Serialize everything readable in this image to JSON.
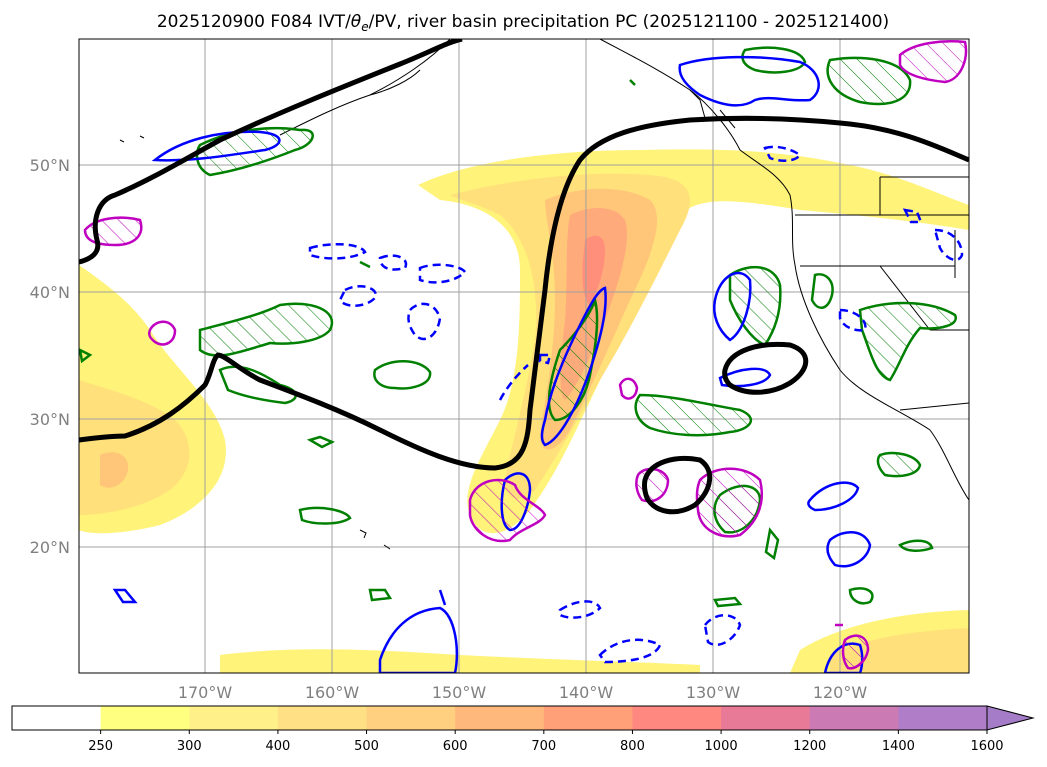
{
  "title": {
    "prefix": "2025120900 F084 IVT/",
    "theta": "θ",
    "sub": "e",
    "suffix": "/PV, river basin precipitation PC (2025121100 - 2025121400)"
  },
  "map": {
    "lat_labels": [
      "50°N",
      "40°N",
      "30°N",
      "20°N"
    ],
    "lon_labels": [
      "170°W",
      "160°W",
      "150°W",
      "140°W",
      "130°W",
      "120°W"
    ]
  },
  "colorbar": {
    "ticks": [
      "250",
      "300",
      "400",
      "500",
      "600",
      "700",
      "800",
      "1000",
      "1200",
      "1400",
      "1600"
    ],
    "colors": [
      "#ffffff",
      "#ffff80",
      "#fff08a",
      "#ffe085",
      "#ffd080",
      "#ffb87c",
      "#ffa078",
      "#ff8880",
      "#e87a98",
      "#cc7ab4",
      "#b07ec8",
      "#a47cc8"
    ]
  },
  "colors": {
    "ivt": [
      "#fff37a",
      "#ffe07a",
      "#ffc67a",
      "#ffaa7a",
      "#ff8f7a"
    ],
    "pv_contour": "#000000",
    "theta_green": "#008000",
    "blue": "#0000ff",
    "magenta": "#c000c0"
  }
}
